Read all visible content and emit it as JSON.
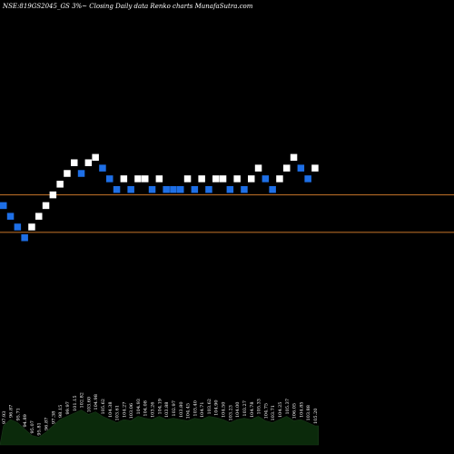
{
  "chart_data": {
    "type": "renko",
    "title": "NSE:819GS2045_GS 3%~  Closing Daily data  Renko  charts MunafaSutra.com",
    "brick_size": 3,
    "up_color": "#ffffff",
    "down_color": "#1e6fe6",
    "background": "#000000",
    "hline_color": "#c8762a",
    "hlines": [
      102.5,
      99.0
    ],
    "ylim": [
      80,
      119
    ],
    "bricks": [
      {
        "close": 101.5,
        "dir": "down"
      },
      {
        "close": 100.5,
        "dir": "down"
      },
      {
        "close": 99.5,
        "dir": "down"
      },
      {
        "close": 98.5,
        "dir": "down"
      },
      {
        "close": 99.5,
        "dir": "up"
      },
      {
        "close": 100.5,
        "dir": "up"
      },
      {
        "close": 101.5,
        "dir": "up"
      },
      {
        "close": 102.5,
        "dir": "up"
      },
      {
        "close": 103.5,
        "dir": "up"
      },
      {
        "close": 104.5,
        "dir": "up"
      },
      {
        "close": 105.5,
        "dir": "up"
      },
      {
        "close": 104.5,
        "dir": "down"
      },
      {
        "close": 105.5,
        "dir": "up"
      },
      {
        "close": 106.0,
        "dir": "up"
      },
      {
        "close": 105.0,
        "dir": "down"
      },
      {
        "close": 104.0,
        "dir": "down"
      },
      {
        "close": 103.0,
        "dir": "down"
      },
      {
        "close": 104.0,
        "dir": "up"
      },
      {
        "close": 103.0,
        "dir": "down"
      },
      {
        "close": 104.0,
        "dir": "up"
      },
      {
        "close": 104.0,
        "dir": "up"
      },
      {
        "close": 103.0,
        "dir": "down"
      },
      {
        "close": 104.0,
        "dir": "up"
      },
      {
        "close": 103.0,
        "dir": "down"
      },
      {
        "close": 103.0,
        "dir": "down"
      },
      {
        "close": 103.0,
        "dir": "down"
      },
      {
        "close": 104.0,
        "dir": "up"
      },
      {
        "close": 103.0,
        "dir": "down"
      },
      {
        "close": 104.0,
        "dir": "up"
      },
      {
        "close": 103.0,
        "dir": "down"
      },
      {
        "close": 104.0,
        "dir": "up"
      },
      {
        "close": 104.0,
        "dir": "up"
      },
      {
        "close": 103.0,
        "dir": "down"
      },
      {
        "close": 104.0,
        "dir": "up"
      },
      {
        "close": 103.0,
        "dir": "down"
      },
      {
        "close": 104.0,
        "dir": "up"
      },
      {
        "close": 105.0,
        "dir": "up"
      },
      {
        "close": 104.0,
        "dir": "down"
      },
      {
        "close": 103.0,
        "dir": "down"
      },
      {
        "close": 104.0,
        "dir": "up"
      },
      {
        "close": 105.0,
        "dir": "up"
      },
      {
        "close": 106.0,
        "dir": "up"
      },
      {
        "close": 105.0,
        "dir": "down"
      },
      {
        "close": 104.0,
        "dir": "down"
      },
      {
        "close": 105.0,
        "dir": "up"
      }
    ],
    "volume_color": "#0b2a0b",
    "volume_edge_color": "#1a3a1a",
    "volume_ylim": [
      0,
      100
    ],
    "volumes": [
      30,
      40,
      35,
      25,
      15,
      12,
      20,
      30,
      40,
      45,
      50,
      55,
      48,
      52,
      45,
      40,
      35,
      40,
      38,
      45,
      42,
      40,
      45,
      40,
      42,
      40,
      38,
      42,
      40,
      45,
      43,
      40,
      35,
      40,
      42,
      40,
      45,
      38,
      35,
      40,
      45,
      38,
      40,
      35,
      30
    ],
    "volume_labels": [
      "97.93",
      "96.87",
      "95.71",
      "94.89",
      "95.07",
      "95.81",
      "96.87",
      "97.38",
      "98.15",
      "99.97",
      "101.15",
      "102.82",
      "103.60",
      "104.98",
      "105.62",
      "104.38",
      "103.61",
      "104.27",
      "103.06",
      "104.93",
      "104.08",
      "103.26",
      "104.19",
      "103.88",
      "102.97",
      "103.80",
      "104.45",
      "103.40",
      "104.71",
      "103.62",
      "104.90",
      "104.50",
      "103.23",
      "104.00",
      "103.27",
      "104.78",
      "105.33",
      "104.75",
      "103.71",
      "104.25",
      "105.37",
      "106.05",
      "104.85",
      "103.88",
      "105.20"
    ]
  }
}
